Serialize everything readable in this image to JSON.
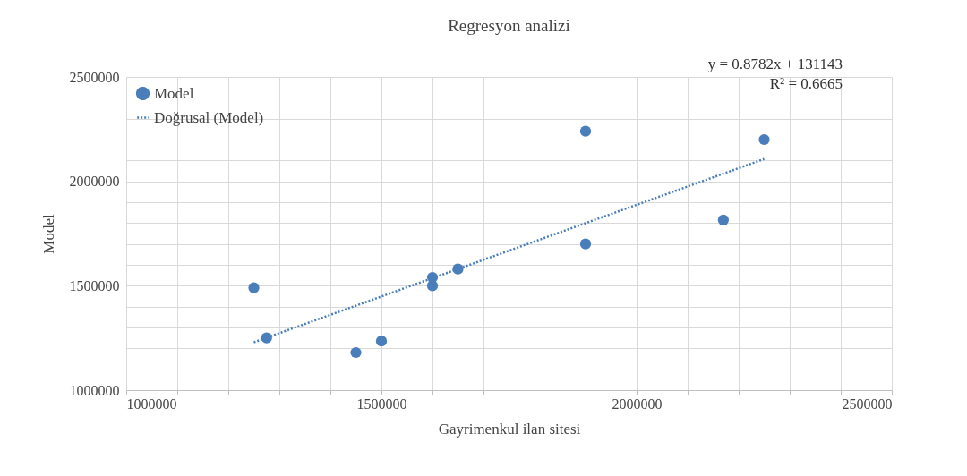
{
  "chart_data": {
    "type": "scatter",
    "title": "Regresyon analizi",
    "xlabel": "Gayrimenkul ilan sitesi",
    "ylabel": "Model",
    "x": [
      1250000,
      1275000,
      1450000,
      1500000,
      1600000,
      1600000,
      1650000,
      1900000,
      1900000,
      2170000,
      2250000
    ],
    "series": [
      {
        "name": "Model",
        "color": "#4a7ebb",
        "type": "scatter",
        "marker": "circle",
        "values": [
          1490000,
          1250000,
          1180000,
          1235000,
          1540000,
          1500000,
          1580000,
          2240000,
          1700000,
          1815000,
          2200000
        ]
      },
      {
        "name": "Doğrusal (Model)",
        "color": "#4a7ebb",
        "type": "line",
        "line_style": "dotted",
        "x": [
          1250000,
          2250000
        ],
        "values": [
          1229000,
          2107000
        ]
      }
    ],
    "xlim": [
      1000000,
      2500000
    ],
    "xticks": [
      1000000,
      {
        "value": 1100000,
        "label": null
      },
      {
        "value": 1200000,
        "label": null
      },
      {
        "value": 1300000,
        "label": null
      },
      {
        "value": 1400000,
        "label": null
      },
      1500000,
      {
        "value": 1600000,
        "label": null
      },
      {
        "value": 1700000,
        "label": null
      },
      {
        "value": 1800000,
        "label": null
      },
      {
        "value": 1900000,
        "label": null
      },
      2000000,
      {
        "value": 2100000,
        "label": null
      },
      {
        "value": 2200000,
        "label": null
      },
      {
        "value": 2300000,
        "label": null
      },
      {
        "value": 2400000,
        "label": null
      },
      2500000
    ],
    "ylim": [
      1000000,
      2500000
    ],
    "yticks": [
      1000000,
      {
        "value": 1100000,
        "label": null
      },
      {
        "value": 1200000,
        "label": null
      },
      {
        "value": 1300000,
        "label": null
      },
      {
        "value": 1400000,
        "label": null
      },
      1500000,
      {
        "value": 1600000,
        "label": null
      },
      {
        "value": 1700000,
        "label": null
      },
      {
        "value": 1800000,
        "label": null
      },
      {
        "value": 1900000,
        "label": null
      },
      2000000,
      {
        "value": 2100000,
        "label": null
      },
      {
        "value": 2200000,
        "label": null
      },
      {
        "value": 2300000,
        "label": null
      },
      {
        "value": 2400000,
        "label": null
      },
      2500000
    ],
    "grid": true,
    "legend": "top left",
    "annotations": [
      "y = 0.8782x + 131143",
      "R² = 0.6665"
    ]
  }
}
